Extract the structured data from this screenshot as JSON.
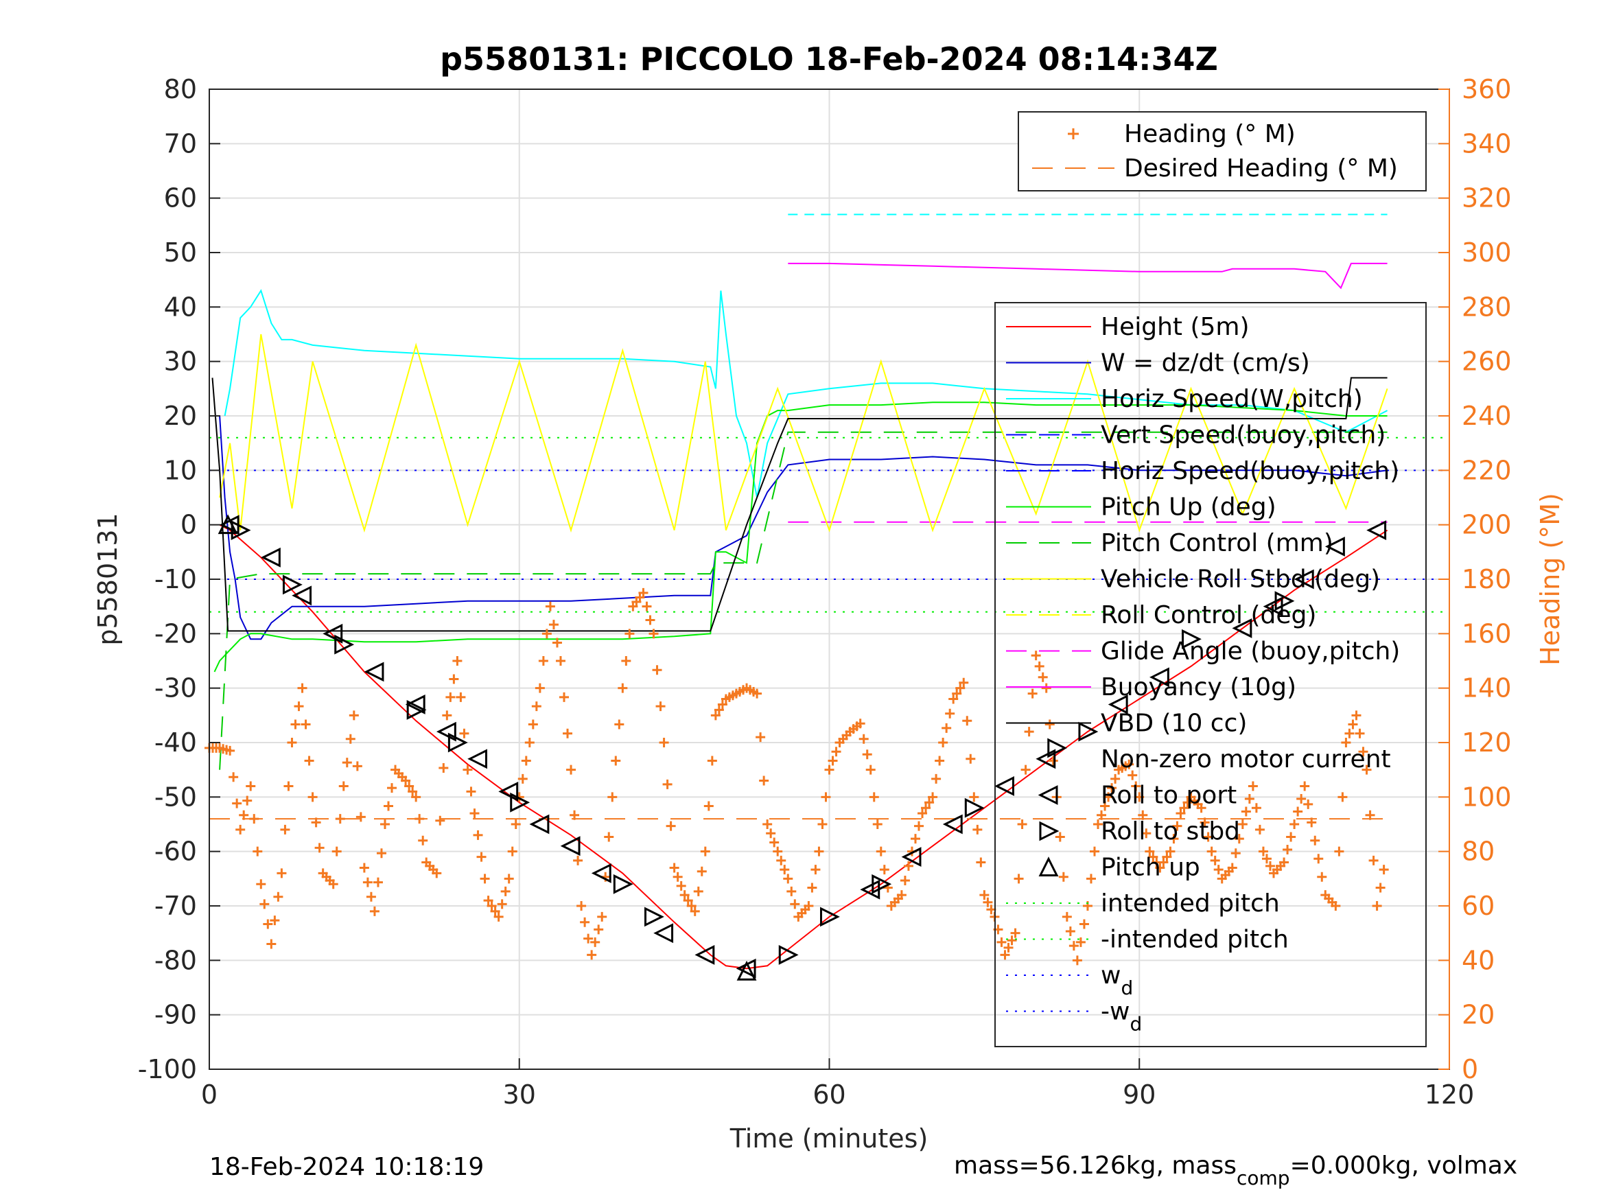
{
  "footer": {
    "timestamp": "18-Feb-2024 10:18:19",
    "mass_text_prefix": "mass=56.126kg, mass",
    "mass_text_sub": "comp",
    "mass_text_suffix": "=0.000kg, volmax"
  },
  "chart_data": {
    "type": "line",
    "title": "p5580131: PICCOLO 18-Feb-2024 08:14:34Z",
    "xlabel": "Time (minutes)",
    "ylabel_left": "p5580131",
    "ylabel_right": "Heading (°M)",
    "xlim": [
      0,
      120
    ],
    "ylim_left": [
      -100,
      80
    ],
    "ylim_right": [
      0,
      360
    ],
    "x_ticks": [
      0,
      30,
      60,
      90,
      120
    ],
    "y_ticks_left": [
      -100,
      -90,
      -80,
      -70,
      -60,
      -50,
      -40,
      -30,
      -20,
      -10,
      0,
      10,
      20,
      30,
      40,
      50,
      60,
      70,
      80
    ],
    "y_ticks_right": [
      0,
      20,
      40,
      60,
      80,
      100,
      120,
      140,
      160,
      180,
      200,
      220,
      240,
      260,
      280,
      300,
      320,
      340,
      360
    ],
    "grid": true,
    "colors": {
      "heading": "#f47920",
      "height": "#ff0000",
      "w": "#0000d0",
      "horiz_speed_pitch": "#00ffff",
      "vert_speed_buoy": "#0000ff",
      "horiz_speed_buoy": "#0000ff",
      "pitch_up": "#00ee00",
      "pitch_control": "#00cc00",
      "vehicle_roll": "#ffff00",
      "roll_control": "#ffff00",
      "glide_angle": "#ff00ff",
      "buoyancy": "#ff00ff",
      "vbd": "#000000",
      "markers": "#000000"
    },
    "legend_right_axis": {
      "placement": "top-right",
      "entries": [
        "Heading (° M)",
        "Desired Heading (° M)"
      ]
    },
    "legend_left_axis": {
      "placement": "right",
      "entries": [
        {
          "label": "Height (5m)",
          "sub": ""
        },
        {
          "label": "W = dz/dt (cm/s)",
          "sub": ""
        },
        {
          "label": "Horiz Speed(W,pitch)",
          "sub": ""
        },
        {
          "label": "Vert Speed(buoy,pitch)",
          "sub": ""
        },
        {
          "label": "Horiz Speed(buoy,pitch)",
          "sub": ""
        },
        {
          "label": "Pitch Up (deg)",
          "sub": ""
        },
        {
          "label": "Pitch Control (mm)",
          "sub": ""
        },
        {
          "label": "Vehicle Roll Stbd (deg)",
          "sub": ""
        },
        {
          "label": "Roll Control (deg)",
          "sub": ""
        },
        {
          "label": "Glide Angle (buoy,pitch)",
          "sub": ""
        },
        {
          "label": "Buoyancy (10g)",
          "sub": ""
        },
        {
          "label": "VBD (10 cc)",
          "sub": ""
        },
        {
          "label": "Non-zero motor current",
          "sub": ""
        },
        {
          "label": "Roll to port",
          "sub": ""
        },
        {
          "label": "Roll to stbd",
          "sub": ""
        },
        {
          "label": "Pitch up",
          "sub": ""
        },
        {
          "label": "intended pitch",
          "sub": ""
        },
        {
          "label": "-intended pitch",
          "sub": ""
        },
        {
          "label": "w",
          "sub": "d"
        },
        {
          "label": "-w",
          "sub": "d"
        }
      ]
    },
    "series": [
      {
        "name": "Height (5m)",
        "axis": "left",
        "x": [
          1,
          2,
          5,
          10,
          15,
          20,
          25,
          30,
          35,
          40,
          45,
          48.5,
          50,
          52,
          54,
          56,
          60,
          65,
          70,
          75,
          80,
          85,
          90,
          95,
          100,
          105,
          110,
          114
        ],
        "y": [
          0,
          -1,
          -6,
          -16,
          -27,
          -36,
          -44,
          -51,
          -57,
          -64,
          -73,
          -79,
          -81,
          -81.5,
          -81,
          -78,
          -72,
          -66,
          -59,
          -52,
          -45,
          -38,
          -32,
          -26,
          -19,
          -12,
          -6,
          -1
        ]
      },
      {
        "name": "W = dz/dt (cm/s)",
        "axis": "left",
        "x": [
          1,
          1.5,
          2,
          2.5,
          3,
          4,
          5,
          6,
          8,
          10,
          15,
          20,
          25,
          30,
          35,
          40,
          45,
          48.5,
          49,
          50,
          52,
          54,
          56,
          60,
          65,
          70,
          75,
          80,
          85,
          90,
          95,
          100,
          105,
          110,
          114
        ],
        "y": [
          20,
          5,
          -5,
          -10,
          -17,
          -21,
          -21,
          -18,
          -15,
          -15,
          -15,
          -14.5,
          -14,
          -14,
          -14,
          -13.5,
          -13,
          -13,
          -5,
          -4,
          -2,
          6,
          11,
          12,
          12,
          12.5,
          12,
          11,
          11,
          10,
          10,
          10,
          10,
          9,
          10
        ]
      },
      {
        "name": "Horiz Speed(W,pitch)",
        "axis": "left",
        "x": [
          1.5,
          2,
          3,
          4,
          5,
          5.5,
          6,
          7,
          8,
          10,
          15,
          20,
          25,
          30,
          35,
          40,
          45,
          48.5,
          49,
          49.5,
          50,
          51,
          52,
          53,
          54,
          56,
          60,
          65,
          70,
          75,
          80,
          85,
          90,
          95,
          100,
          105,
          110,
          114
        ],
        "y": [
          20,
          25,
          38,
          40,
          43,
          40,
          37,
          34,
          34,
          33,
          32,
          31.5,
          31,
          30.5,
          30.5,
          30.5,
          30,
          29,
          25,
          43,
          35,
          20,
          15,
          5,
          15,
          24,
          25,
          26,
          26,
          25,
          24.5,
          24,
          23,
          22,
          22,
          21,
          17,
          21
        ]
      },
      {
        "name": "Pitch Up (deg)",
        "axis": "left",
        "x": [
          0.5,
          1,
          2,
          3,
          4,
          5,
          8,
          10,
          15,
          20,
          25,
          30,
          35,
          40,
          45,
          48.5,
          49,
          50,
          52,
          53,
          54,
          55,
          56,
          60,
          65,
          70,
          75,
          80,
          85,
          90,
          95,
          100,
          105,
          110,
          114
        ],
        "y": [
          -27,
          -25,
          -23,
          -21,
          -20,
          -20,
          -21,
          -21,
          -21.5,
          -21.5,
          -21,
          -21,
          -21,
          -21,
          -20.5,
          -20,
          -5,
          -5,
          -7,
          15,
          20,
          21,
          21,
          22,
          22,
          22.5,
          22.5,
          22,
          22,
          22,
          22,
          21.5,
          21,
          20,
          20
        ]
      },
      {
        "name": "Pitch Control (mm)",
        "axis": "left",
        "x": [
          1,
          2,
          5,
          10,
          20,
          30,
          40,
          48.5,
          49,
          50,
          53,
          56,
          60,
          70,
          80,
          90,
          100,
          110,
          114
        ],
        "y": [
          -45,
          -10,
          -9,
          -9,
          -9,
          -9,
          -9,
          -9,
          -7,
          -7,
          -7,
          17,
          17,
          17,
          17,
          17,
          17,
          17,
          17
        ]
      },
      {
        "name": "Vehicle Roll Stbd (deg)",
        "axis": "left",
        "x": [
          1,
          2,
          3,
          5,
          8,
          10,
          15,
          20,
          25,
          30,
          35,
          40,
          45,
          48,
          50,
          55,
          60,
          65,
          70,
          75,
          80,
          85,
          90,
          95,
          100,
          105,
          110,
          114
        ],
        "y": [
          5,
          15,
          -1,
          35,
          3,
          30,
          -1,
          33,
          0,
          30,
          -1,
          32,
          -1,
          30,
          -1,
          25,
          -1,
          30,
          -1,
          25,
          2,
          30,
          -1,
          25,
          2,
          25,
          3,
          25
        ]
      },
      {
        "name": "Buoyancy (10g)",
        "axis": "left",
        "x": [
          56,
          60,
          70,
          80,
          90,
          98,
          99,
          105,
          108,
          109.5,
          110.5,
          114
        ],
        "y": [
          48,
          48,
          47.5,
          47,
          46.5,
          46.5,
          47,
          47,
          46.5,
          43.5,
          48,
          48
        ]
      },
      {
        "name": "VBD (10 cc)",
        "axis": "left",
        "x": [
          0.3,
          1,
          1.8,
          10,
          20,
          30,
          40,
          48.5,
          52,
          55,
          56,
          60,
          70,
          80,
          90,
          100,
          110,
          110.5,
          114
        ],
        "y": [
          27,
          10,
          -19.5,
          -19.5,
          -19.5,
          -19.5,
          -19.5,
          -19.5,
          0,
          15,
          19.5,
          19.5,
          19.5,
          19.5,
          19.5,
          19.5,
          19.5,
          27,
          27
        ]
      },
      {
        "name": "Glide Angle (buoy,pitch)",
        "axis": "left",
        "x": [
          56,
          114
        ],
        "y": [
          57,
          57
        ]
      },
      {
        "name": "Heading (° M)",
        "axis": "right",
        "x": [
          0,
          1,
          2,
          3,
          4,
          5,
          6,
          7,
          8,
          9,
          10,
          11,
          12,
          13,
          14,
          15,
          16,
          17,
          18,
          19,
          20,
          21,
          22,
          23,
          24,
          25,
          26,
          27,
          28,
          29,
          30,
          31,
          32,
          33,
          34,
          35,
          36,
          37,
          38,
          39,
          40,
          41,
          42,
          43,
          44,
          45,
          46,
          47,
          48,
          49,
          50,
          51,
          52,
          53,
          54,
          55,
          56,
          57,
          58,
          59,
          60,
          61,
          62,
          63,
          64,
          65,
          66,
          67,
          68,
          69,
          70,
          71,
          72,
          73,
          74,
          75,
          76,
          77,
          78,
          79,
          80,
          81,
          82,
          83,
          84,
          85,
          86,
          87,
          88,
          89,
          90,
          91,
          92,
          93,
          94,
          95,
          96,
          97,
          98,
          99,
          100,
          101,
          102,
          103,
          104,
          105,
          106,
          107,
          108,
          109,
          110,
          111,
          112,
          113,
          114
        ],
        "y": [
          118,
          118,
          117,
          88,
          104,
          68,
          46,
          72,
          120,
          140,
          100,
          72,
          68,
          104,
          130,
          74,
          58,
          90,
          110,
          106,
          100,
          76,
          72,
          130,
          150,
          110,
          86,
          62,
          56,
          70,
          100,
          120,
          140,
          170,
          150,
          110,
          60,
          42,
          56,
          100,
          140,
          170,
          175,
          160,
          120,
          74,
          64,
          58,
          80,
          130,
          136,
          138,
          140,
          138,
          90,
          80,
          70,
          56,
          60,
          80,
          110,
          120,
          124,
          127,
          110,
          80,
          60,
          64,
          80,
          94,
          100,
          120,
          136,
          142,
          100,
          64,
          56,
          42,
          50,
          110,
          152,
          140,
          100,
          56,
          40,
          60,
          90,
          100,
          110,
          112,
          100,
          80,
          74,
          80,
          94,
          100,
          96,
          80,
          70,
          74,
          90,
          104,
          80,
          72,
          76,
          90,
          104,
          84,
          64,
          60,
          120,
          130,
          110,
          60,
          80
        ]
      },
      {
        "name": "Desired Heading (° M)",
        "axis": "right",
        "x": [
          0,
          114
        ],
        "y": [
          92,
          92
        ]
      }
    ],
    "reference_lines": [
      {
        "name": "intended pitch",
        "axis": "left",
        "y": 16
      },
      {
        "name": "-intended pitch",
        "axis": "left",
        "y": -16
      },
      {
        "name": "w_d",
        "axis": "left",
        "y": 10
      },
      {
        "name": "-w_d",
        "axis": "left",
        "y": -10
      },
      {
        "name": "Glide Angle zero",
        "axis": "left",
        "y": 0.5
      }
    ],
    "markers": {
      "roll_to_port": [
        [
          2,
          0
        ],
        [
          6,
          -6
        ],
        [
          9,
          -13
        ],
        [
          12,
          -20
        ],
        [
          16,
          -27
        ],
        [
          20,
          -33
        ],
        [
          23,
          -38
        ],
        [
          26,
          -43
        ],
        [
          29,
          -49
        ],
        [
          32,
          -55
        ],
        [
          35,
          -59
        ],
        [
          38,
          -64
        ],
        [
          44,
          -75
        ],
        [
          48,
          -79
        ],
        [
          52,
          -81.5
        ],
        [
          64,
          -67
        ],
        [
          68,
          -61
        ],
        [
          72,
          -55
        ],
        [
          77,
          -48
        ],
        [
          81,
          -43
        ],
        [
          88,
          -33
        ],
        [
          92,
          -28
        ],
        [
          100,
          -19
        ],
        [
          103,
          -15
        ],
        [
          106,
          -10
        ],
        [
          109,
          -4
        ],
        [
          113,
          -1
        ]
      ],
      "roll_to_stbd": [
        [
          3,
          -1
        ],
        [
          8,
          -11
        ],
        [
          13,
          -22
        ],
        [
          20,
          -34
        ],
        [
          24,
          -40
        ],
        [
          30,
          -51
        ],
        [
          40,
          -66
        ],
        [
          43,
          -72
        ],
        [
          56,
          -79
        ],
        [
          60,
          -72
        ],
        [
          65,
          -66
        ],
        [
          74,
          -52
        ],
        [
          82,
          -41
        ],
        [
          85,
          -38
        ],
        [
          95,
          -21
        ],
        [
          104,
          -14
        ]
      ],
      "pitch_up": [
        [
          1.8,
          0
        ],
        [
          52,
          -82
        ]
      ]
    }
  }
}
